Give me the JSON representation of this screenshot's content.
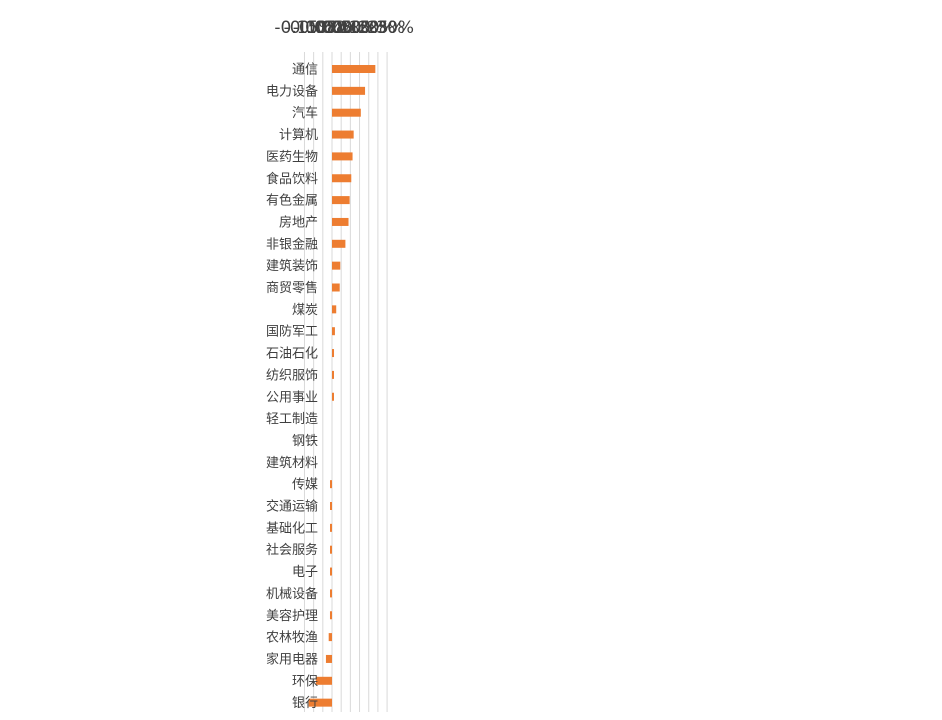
{
  "chart_data": {
    "type": "bar",
    "orientation": "horizontal",
    "grid": true,
    "legend": "none",
    "bar_color": "#ED7D31",
    "grid_color": "#d9d9d9",
    "xlim": [
      -0.0015,
      0.003
    ],
    "x_ticks": [
      -0.0015,
      -0.001,
      -0.0005,
      0,
      0.0005,
      0.001,
      0.0015,
      0.002,
      0.0025,
      0.003
    ],
    "x_tick_labels": [
      "-0.15%",
      "-0.10%",
      "-0.05%",
      "0.00%",
      "0.05%",
      "0.10%",
      "0.15%",
      "0.20%",
      "0.25%",
      "0.30%"
    ],
    "categories": [
      "通信",
      "电力设备",
      "汽车",
      "计算机",
      "医药生物",
      "食品饮料",
      "有色金属",
      "房地产",
      "非银金融",
      "建筑装饰",
      "商贸零售",
      "煤炭",
      "国防军工",
      "石油石化",
      "纺织服饰",
      "公用事业",
      "轻工制造",
      "钢铁",
      "建筑材料",
      "传媒",
      "交通运输",
      "基础化工",
      "社会服务",
      "电子",
      "机械设备",
      "美容护理",
      "农林牧渔",
      "家用电器",
      "环保",
      "银行"
    ],
    "values": [
      0.00236,
      0.0018,
      0.00157,
      0.00118,
      0.00112,
      0.00105,
      0.00096,
      0.0009,
      0.00073,
      0.00045,
      0.00042,
      0.00023,
      0.00016,
      0.00011,
      0.0001,
      3e-05,
      0,
      0,
      0,
      -1e-05,
      -1e-05,
      -2e-05,
      -4e-05,
      -7e-05,
      -9e-05,
      -0.00011,
      -0.00018,
      -0.00033,
      -0.00088,
      -0.00127
    ]
  }
}
